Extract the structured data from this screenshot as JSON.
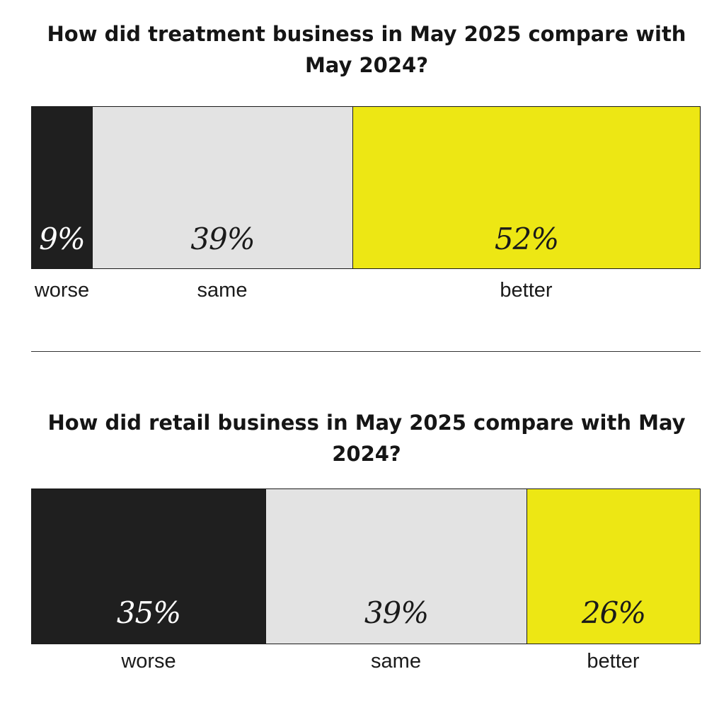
{
  "chart_data": [
    {
      "type": "bar",
      "title": "How did treatment business in May 2025 compare with May 2024?",
      "stacked": true,
      "orientation": "horizontal",
      "unit": "%",
      "categories": [
        "worse",
        "same",
        "better"
      ],
      "values": [
        9,
        39,
        52
      ],
      "value_labels": [
        "9%",
        "39%",
        "52%"
      ],
      "colors": [
        "#1f1f1f",
        "#e3e3e3",
        "#ede714"
      ],
      "label_colors": [
        "#ffffff",
        "#1a1a1a",
        "#1a1a1a"
      ]
    },
    {
      "type": "bar",
      "title": "How did retail business in May 2025 compare with May 2024?",
      "stacked": true,
      "orientation": "horizontal",
      "unit": "%",
      "categories": [
        "worse",
        "same",
        "better"
      ],
      "values": [
        35,
        39,
        26
      ],
      "value_labels": [
        "35%",
        "39%",
        "26%"
      ],
      "colors": [
        "#1f1f1f",
        "#e3e3e3",
        "#ede714"
      ],
      "label_colors": [
        "#ffffff",
        "#1a1a1a",
        "#1a1a1a"
      ]
    }
  ]
}
